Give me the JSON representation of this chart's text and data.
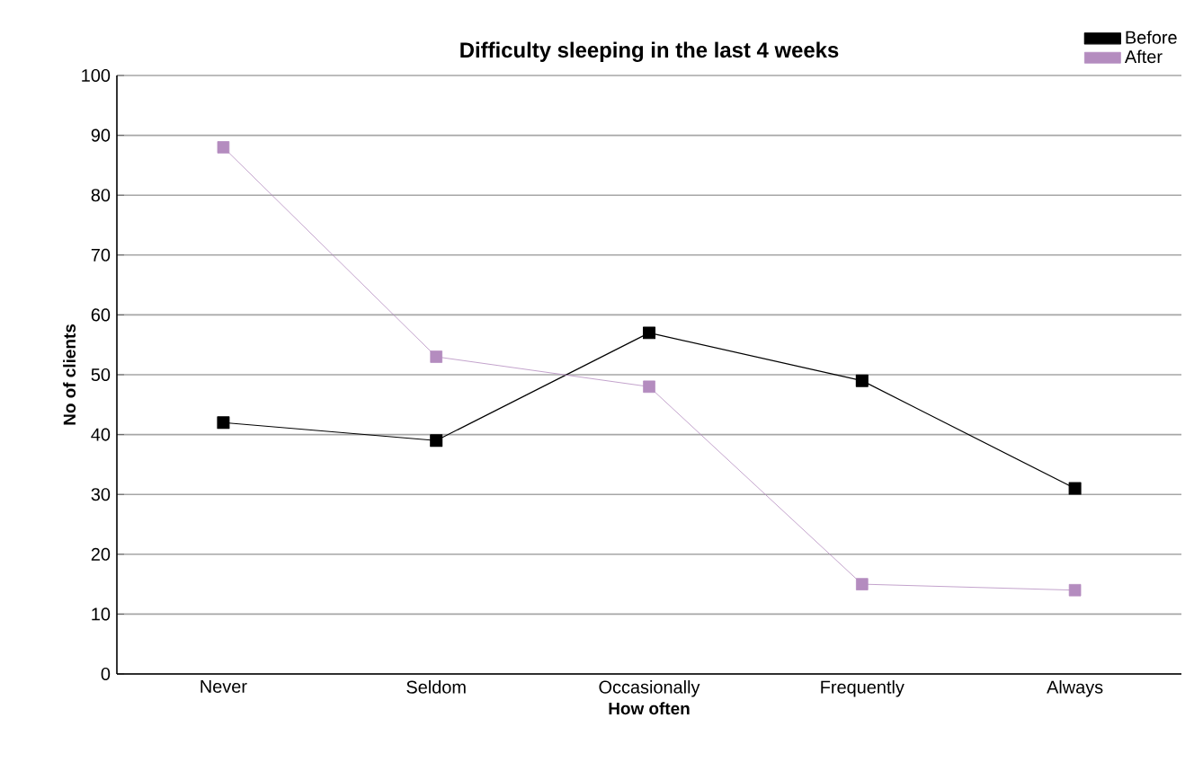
{
  "chart_data": {
    "type": "line",
    "title": "Difficulty sleeping in the last 4 weeks",
    "xlabel": "How often",
    "ylabel": "No of clients",
    "categories": [
      "Never",
      "Seldom",
      "Occasionally",
      "Frequently",
      "Always"
    ],
    "series": [
      {
        "name": "Before",
        "color": "#000000",
        "values": [
          42,
          39,
          57,
          49,
          31
        ]
      },
      {
        "name": "After",
        "color": "#b48cbf",
        "values": [
          88,
          53,
          48,
          15,
          14
        ]
      }
    ],
    "ylim": [
      0,
      100
    ],
    "yticks": [
      0,
      10,
      20,
      30,
      40,
      50,
      60,
      70,
      80,
      90,
      100
    ],
    "grid": "y",
    "legend": "top right",
    "marker": "square",
    "line_style": "solid"
  }
}
